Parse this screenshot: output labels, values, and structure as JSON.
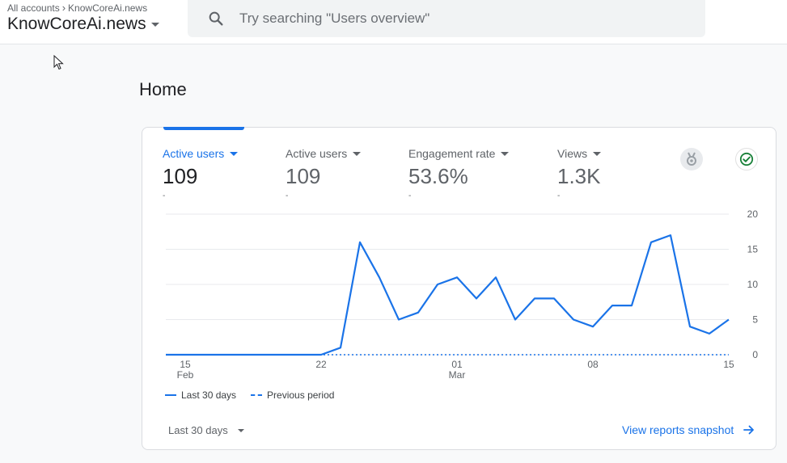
{
  "header": {
    "breadcrumb": {
      "root": "All accounts",
      "current": "KnowCoreAi.news"
    },
    "account_title": "KnowCoreAi.news",
    "search": {
      "placeholder": "Try searching \"Users overview\"",
      "value": ""
    }
  },
  "page": {
    "title": "Home"
  },
  "metrics": [
    {
      "label": "Active users",
      "value": "109",
      "delta": "-",
      "selected": true
    },
    {
      "label": "Active users",
      "value": "109",
      "delta": "-",
      "selected": false
    },
    {
      "label": "Engagement rate",
      "value": "53.6%",
      "delta": "-",
      "selected": false
    },
    {
      "label": "Views",
      "value": "1.3K",
      "delta": "-",
      "selected": false
    }
  ],
  "icons": {
    "insights": "medal-icon",
    "status": "check-circle-icon",
    "search": "search-icon",
    "cursor": "mouse-pointer-icon",
    "link_arrow": "arrow-right-icon"
  },
  "colors": {
    "accent": "#1a73e8",
    "success": "#188038",
    "text": "#202124",
    "muted": "#5f6368"
  },
  "chart_data": {
    "type": "line",
    "x": [
      "Feb 14",
      "Feb 15",
      "Feb 16",
      "Feb 17",
      "Feb 18",
      "Feb 19",
      "Feb 20",
      "Feb 21",
      "Feb 22",
      "Feb 23",
      "Feb 24",
      "Feb 25",
      "Feb 26",
      "Feb 27",
      "Feb 28",
      "Mar 01",
      "Mar 02",
      "Mar 03",
      "Mar 04",
      "Mar 05",
      "Mar 06",
      "Mar 07",
      "Mar 08",
      "Mar 09",
      "Mar 10",
      "Mar 11",
      "Mar 12",
      "Mar 13",
      "Mar 14",
      "Mar 15"
    ],
    "x_ticks": [
      {
        "index": 1,
        "label": "15",
        "sublabel": "Feb"
      },
      {
        "index": 8,
        "label": "22",
        "sublabel": ""
      },
      {
        "index": 15,
        "label": "01",
        "sublabel": "Mar"
      },
      {
        "index": 22,
        "label": "08",
        "sublabel": ""
      },
      {
        "index": 29,
        "label": "15",
        "sublabel": ""
      }
    ],
    "series": [
      {
        "name": "Last 30 days",
        "style": "solid",
        "values": [
          0,
          0,
          0,
          0,
          0,
          0,
          0,
          0,
          0,
          1,
          16,
          11,
          5,
          6,
          10,
          11,
          8,
          11,
          5,
          8,
          8,
          5,
          4,
          7,
          7,
          16,
          17,
          4,
          3,
          5
        ]
      },
      {
        "name": "Previous period",
        "style": "dashed",
        "values": [
          0,
          0,
          0,
          0,
          0,
          0,
          0,
          0,
          0,
          0,
          0,
          0,
          0,
          0,
          0,
          0,
          0,
          0,
          0,
          0,
          0,
          0,
          0,
          0,
          0,
          0,
          0,
          0,
          0,
          0
        ]
      }
    ],
    "ylim": [
      0,
      20
    ],
    "y_ticks": [
      0,
      5,
      10,
      15,
      20
    ],
    "grid": true,
    "legend_position": "bottom-left"
  },
  "legend": {
    "current": "Last 30 days",
    "previous": "Previous period"
  },
  "footer": {
    "range_label": "Last 30 days",
    "link_label": "View reports snapshot"
  }
}
